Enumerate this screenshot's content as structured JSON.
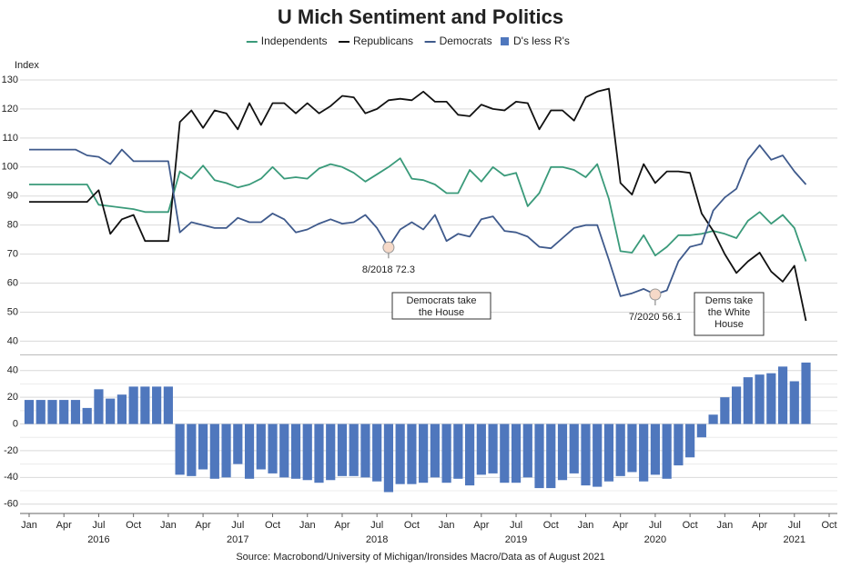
{
  "chart_data": {
    "type": "line",
    "title": "U Mich Sentiment and Politics",
    "ylabel": "Index",
    "source": "Source: Macrobond/University of Michigan/Ironsides Macro/Data as of August 2021",
    "x": [
      "2016-01",
      "2016-02",
      "2016-03",
      "2016-04",
      "2016-05",
      "2016-06",
      "2016-07",
      "2016-08",
      "2016-09",
      "2016-10",
      "2016-11",
      "2016-12",
      "2017-01",
      "2017-02",
      "2017-03",
      "2017-04",
      "2017-05",
      "2017-06",
      "2017-07",
      "2017-08",
      "2017-09",
      "2017-10",
      "2017-11",
      "2017-12",
      "2018-01",
      "2018-02",
      "2018-03",
      "2018-04",
      "2018-05",
      "2018-06",
      "2018-07",
      "2018-08",
      "2018-09",
      "2018-10",
      "2018-11",
      "2018-12",
      "2019-01",
      "2019-02",
      "2019-03",
      "2019-04",
      "2019-05",
      "2019-06",
      "2019-07",
      "2019-08",
      "2019-09",
      "2019-10",
      "2019-11",
      "2019-12",
      "2020-01",
      "2020-02",
      "2020-03",
      "2020-04",
      "2020-05",
      "2020-06",
      "2020-07",
      "2020-08",
      "2020-09",
      "2020-10",
      "2020-11",
      "2020-12",
      "2021-01",
      "2021-02",
      "2021-03",
      "2021-04",
      "2021-05",
      "2021-06",
      "2021-07",
      "2021-08"
    ],
    "xlim": [
      "2016-01",
      "2021-10"
    ],
    "xticks": [
      {
        "value": "2016-01",
        "label": "Jan"
      },
      {
        "value": "2016-04",
        "label": "Apr"
      },
      {
        "value": "2016-07",
        "label": "Jul"
      },
      {
        "value": "2016-10",
        "label": "Oct"
      },
      {
        "value": "2017-01",
        "label": "Jan"
      },
      {
        "value": "2017-04",
        "label": "Apr"
      },
      {
        "value": "2017-07",
        "label": "Jul"
      },
      {
        "value": "2017-10",
        "label": "Oct"
      },
      {
        "value": "2018-01",
        "label": "Jan"
      },
      {
        "value": "2018-04",
        "label": "Apr"
      },
      {
        "value": "2018-07",
        "label": "Jul"
      },
      {
        "value": "2018-10",
        "label": "Oct"
      },
      {
        "value": "2019-01",
        "label": "Jan"
      },
      {
        "value": "2019-04",
        "label": "Apr"
      },
      {
        "value": "2019-07",
        "label": "Jul"
      },
      {
        "value": "2019-10",
        "label": "Oct"
      },
      {
        "value": "2020-01",
        "label": "Jan"
      },
      {
        "value": "2020-04",
        "label": "Apr"
      },
      {
        "value": "2020-07",
        "label": "Jul"
      },
      {
        "value": "2020-10",
        "label": "Oct"
      },
      {
        "value": "2021-01",
        "label": "Jan"
      },
      {
        "value": "2021-04",
        "label": "Apr"
      },
      {
        "value": "2021-07",
        "label": "Jul"
      },
      {
        "value": "2021-10",
        "label": "Oct"
      }
    ],
    "xyears": [
      {
        "value": "2016-07",
        "label": "2016"
      },
      {
        "value": "2017-07",
        "label": "2017"
      },
      {
        "value": "2018-07",
        "label": "2018"
      },
      {
        "value": "2019-07",
        "label": "2019"
      },
      {
        "value": "2020-07",
        "label": "2020"
      },
      {
        "value": "2021-07",
        "label": "2021"
      }
    ],
    "ylim": [
      37,
      132.5
    ],
    "yticks": [
      40,
      50,
      60,
      70,
      80,
      90,
      100,
      110,
      120,
      130
    ],
    "y2lim": [
      -67,
      48
    ],
    "y2ticks": [
      -60,
      -40,
      -20,
      0,
      20,
      40
    ],
    "y2minor": [
      -50,
      -30,
      -10,
      10,
      30
    ],
    "grid": true,
    "series": [
      {
        "name": "Independents",
        "color": "#3a9a7a",
        "type": "line",
        "values": [
          94,
          94,
          94,
          94,
          94,
          94,
          87,
          86.5,
          86,
          85.5,
          84.5,
          84.5,
          84.5,
          98.5,
          96,
          100.5,
          95.5,
          94.5,
          93,
          94,
          96,
          100,
          96,
          96.5,
          96,
          99.5,
          101,
          100,
          98,
          95,
          97.5,
          100,
          103,
          96,
          95.5,
          94,
          91,
          91,
          99,
          95,
          100,
          97,
          98,
          86.5,
          91,
          100,
          100,
          99,
          96.5,
          101,
          89,
          71,
          70.5,
          76.5,
          69.5,
          72.5,
          76.5,
          76.5,
          77,
          78,
          77,
          75.5,
          81.5,
          84.5,
          80.5,
          83.5,
          79,
          67.5
        ]
      },
      {
        "name": "Republicans",
        "color": "#111111",
        "type": "line",
        "values": [
          88,
          88,
          88,
          88,
          88,
          88,
          92,
          77,
          82,
          83.5,
          74.5,
          74.5,
          74.5,
          115.5,
          119.5,
          113.5,
          119.5,
          118.5,
          113,
          122,
          114.5,
          122,
          122,
          118.5,
          122,
          118.5,
          121,
          124.5,
          124,
          118.5,
          120,
          123,
          123.5,
          123,
          126,
          122.5,
          122.5,
          118,
          117.5,
          121.5,
          120,
          119.5,
          122.5,
          122,
          113,
          119.5,
          119.5,
          116,
          124,
          126,
          127,
          94.5,
          90.5,
          101,
          94.5,
          98.5,
          98.5,
          98,
          84,
          78,
          70,
          63.5,
          67.5,
          70.5,
          64,
          60.5,
          66,
          47
        ]
      },
      {
        "name": "Democrats",
        "color": "#3f5a8c",
        "type": "line",
        "values": [
          106,
          106,
          106,
          106,
          106,
          104,
          103.5,
          101,
          106,
          102,
          102,
          102,
          102,
          77.5,
          81,
          80,
          79,
          79,
          82.5,
          81,
          81,
          84,
          82,
          77.5,
          78.5,
          80.5,
          82,
          80.5,
          81,
          83.5,
          79,
          72.3,
          78.5,
          81,
          78.5,
          83.5,
          74.5,
          77,
          76,
          82,
          83,
          78,
          77.5,
          76,
          72.5,
          72,
          75.5,
          79,
          80,
          80,
          68,
          55.5,
          56.5,
          58,
          56.1,
          57.5,
          67.5,
          72.5,
          73.5,
          85,
          89.5,
          92.5,
          102.5,
          107.5,
          102.5,
          104,
          98.5,
          94
        ]
      },
      {
        "name": "D's less R's",
        "color": "#4f77bd",
        "type": "bar",
        "axis": "y2",
        "values": [
          18,
          18,
          18,
          18,
          18,
          12,
          26,
          19,
          22,
          28,
          28,
          28,
          28,
          -38,
          -39,
          -34,
          -41,
          -40,
          -30,
          -41,
          -34,
          -37,
          -40,
          -41,
          -42,
          -44,
          -42,
          -39,
          -39,
          -40,
          -43,
          -51,
          -45,
          -45,
          -44,
          -40,
          -44,
          -41,
          -46,
          -38,
          -37,
          -44,
          -44,
          -40,
          -48,
          -48,
          -42,
          -37,
          -46,
          -47,
          -43,
          -39,
          -36,
          -43,
          -38,
          -41,
          -31,
          -25,
          -10,
          7,
          20,
          28,
          35,
          37,
          38,
          43,
          32,
          46
        ]
      }
    ],
    "point_annotations": [
      {
        "series": 2,
        "index": 31,
        "label": "8/2018 72.3"
      },
      {
        "series": 2,
        "index": 54,
        "label": "7/2020 56.1"
      }
    ],
    "box_annotations": [
      {
        "lines": [
          "Democrats take",
          "the House"
        ]
      },
      {
        "lines": [
          "Dems take",
          "the White",
          "House"
        ]
      }
    ]
  }
}
